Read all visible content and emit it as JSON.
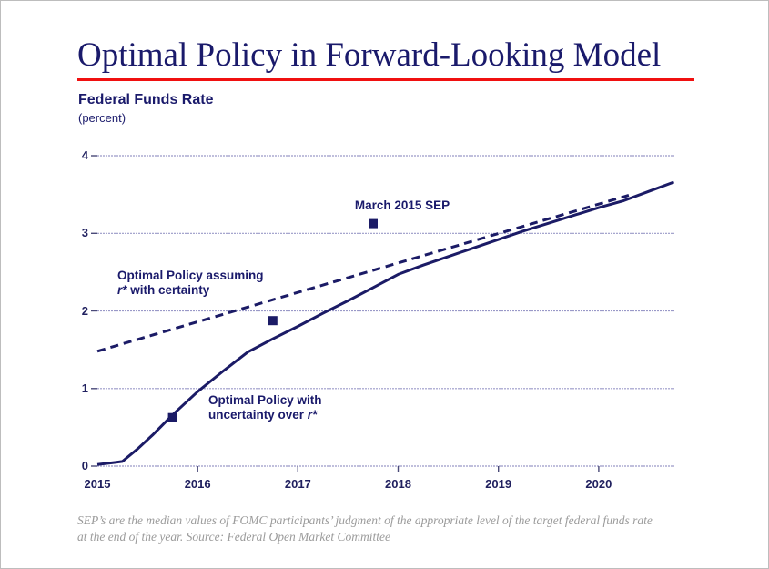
{
  "page": {
    "title": "Optimal Policy in Forward-Looking Model",
    "subtitle": "Federal Funds Rate",
    "subtitle_unit": "(percent)",
    "footnote_line1": "SEP’s are the median values of FOMC participants’ judgment of the appropriate level of the target federal funds rate",
    "footnote_line2": "at the end of the year.  Source: Federal Open Market Committee"
  },
  "colors": {
    "navy": "#1b1b66",
    "red_rule": "#f01010",
    "gridline": "#9a99c8",
    "tick": "#4a4a78",
    "footnote_gray": "#9b9b9b"
  },
  "labels": {
    "sep_marker_label": "March 2015 SEP",
    "certainty_line1": "Optimal Policy assuming",
    "certainty_line2_italic": "r*",
    "certainty_line2_rest": " with certainty",
    "uncertainty_line1": "Optimal Policy with",
    "uncertainty_line2_pre": "uncertainty over ",
    "uncertainty_line2_italic": "r*"
  },
  "chart_data": {
    "type": "line",
    "title": "Federal Funds Rate",
    "ylabel": "percent",
    "x_axis": {
      "ticks": [
        2015,
        2016,
        2017,
        2018,
        2019,
        2020
      ],
      "range": [
        2015,
        2020.78
      ]
    },
    "y_axis": {
      "ticks": [
        0,
        1,
        2,
        3,
        4
      ],
      "range": [
        0,
        4
      ]
    },
    "grid": "horizontal",
    "series": [
      {
        "name": "Optimal Policy assuming r* with certainty",
        "style": "dashed",
        "x": [
          2015.0,
          2020.3
        ],
        "y": [
          1.48,
          3.49
        ]
      },
      {
        "name": "Optimal Policy with uncertainty over r*",
        "style": "solid",
        "x": [
          2015.0,
          2015.25,
          2015.4,
          2015.55,
          2015.75,
          2016.0,
          2016.25,
          2016.5,
          2016.75,
          2017.0,
          2017.25,
          2017.5,
          2017.75,
          2018.0,
          2018.25,
          2018.5,
          2018.75,
          2019.0,
          2019.25,
          2019.5,
          2019.75,
          2020.0,
          2020.25,
          2020.5,
          2020.75
        ],
        "y": [
          0.02,
          0.06,
          0.22,
          0.4,
          0.66,
          0.96,
          1.22,
          1.47,
          1.64,
          1.8,
          1.97,
          2.13,
          2.3,
          2.47,
          2.59,
          2.7,
          2.81,
          2.92,
          3.03,
          3.13,
          3.23,
          3.33,
          3.42,
          3.54,
          3.66
        ]
      },
      {
        "name": "March 2015 SEP",
        "style": "square-markers",
        "x": [
          2015.75,
          2016.75,
          2017.75
        ],
        "y": [
          0.625,
          1.875,
          3.125
        ]
      }
    ]
  }
}
